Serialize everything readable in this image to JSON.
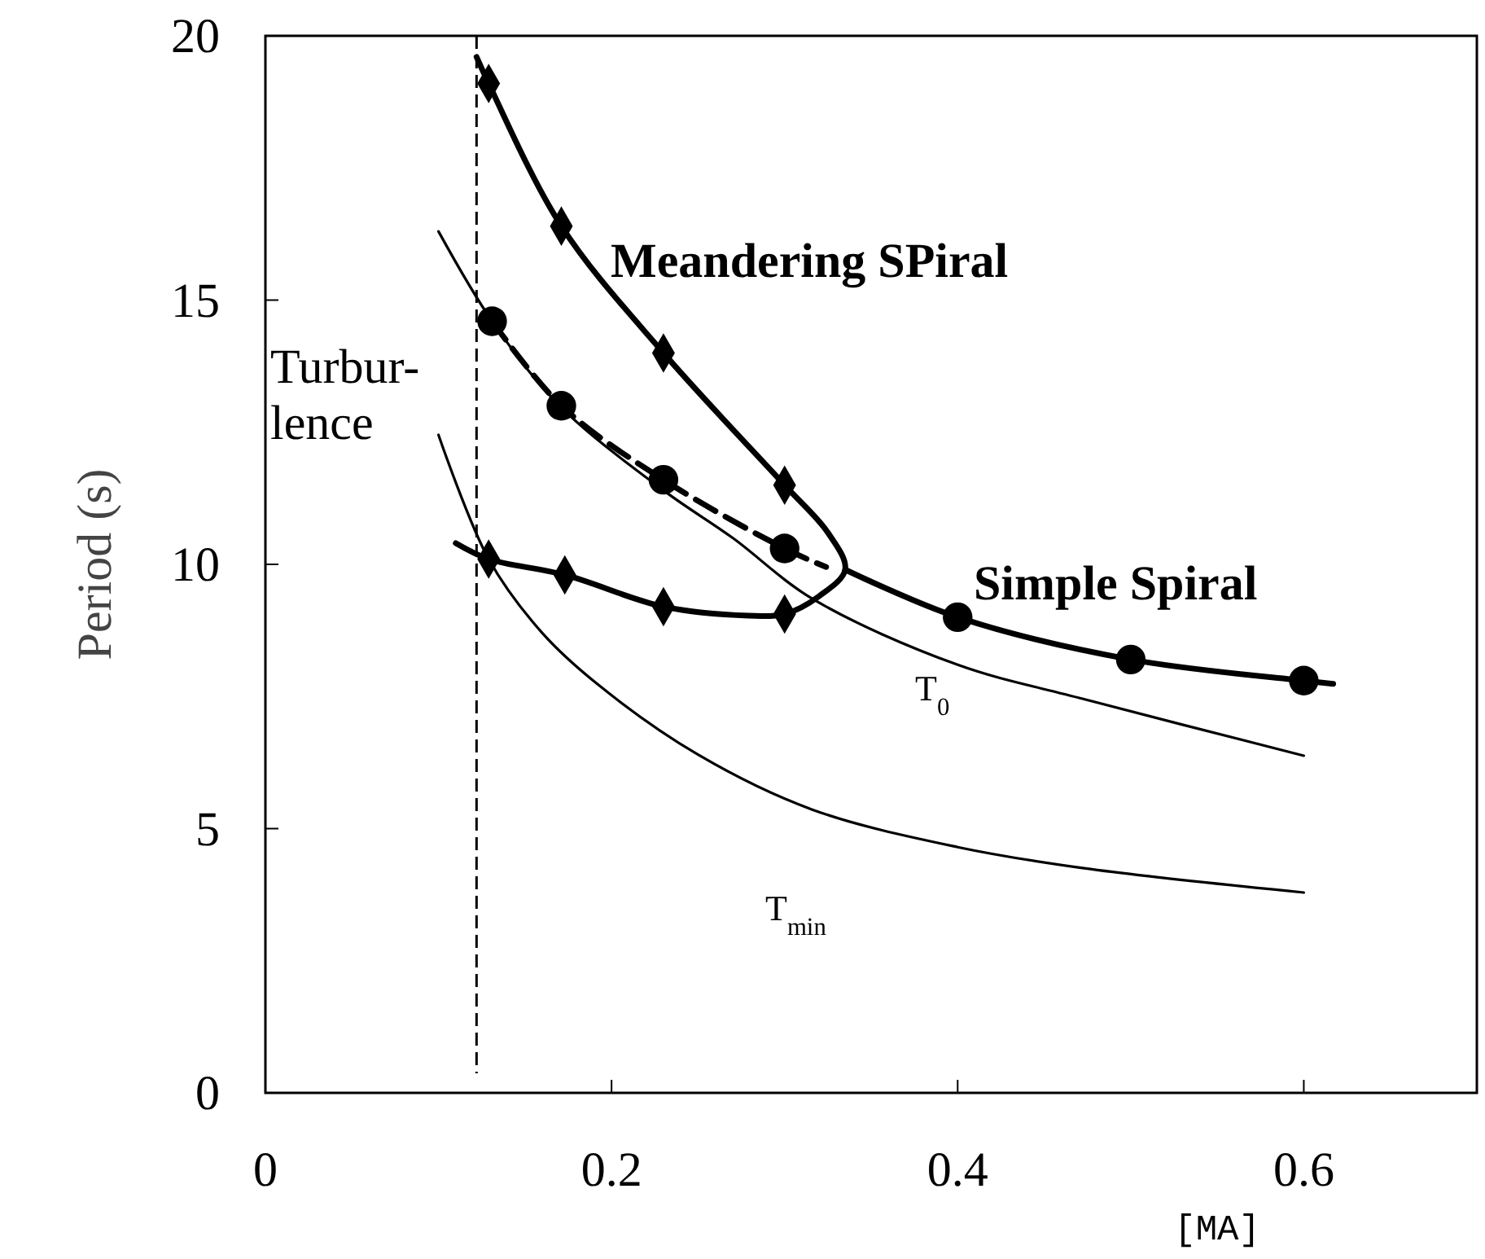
{
  "chart_data": {
    "type": "line",
    "xlabel": "[MA]",
    "ylabel": "Period (s)",
    "xlim": [
      0,
      0.7
    ],
    "ylim": [
      0,
      20
    ],
    "xticks": [
      0,
      0.2,
      0.4,
      0.6
    ],
    "yticks": [
      0,
      5,
      10,
      15,
      20
    ],
    "grid": false,
    "marker": "none",
    "line_style": "solid",
    "series": [
      {
        "name": "Meandering SPiral",
        "color": "#000000",
        "line_style": "solid",
        "x": [
          0.122,
          0.129,
          0.171,
          0.23,
          0.3,
          0.325,
          0.335,
          0.32,
          0.3,
          0.279,
          0.23,
          0.173,
          0.129,
          0.11
        ],
        "values": [
          19.6,
          19.1,
          16.4,
          14.0,
          11.5,
          10.6,
          9.9,
          9.4,
          9.06,
          9.03,
          9.2,
          9.8,
          10.1,
          10.4
        ]
      },
      {
        "type": "scatter",
        "marker": "diamond",
        "color": "#000000",
        "x": [
          0.129,
          0.171,
          0.23,
          0.3,
          0.3,
          0.23,
          0.173,
          0.129
        ],
        "values": [
          19.1,
          16.4,
          14.0,
          11.5,
          9.06,
          9.2,
          9.8,
          10.1
        ]
      },
      {
        "name": "Simple Spiral",
        "color": "#000000",
        "line_style": "solid",
        "x": [
          0.335,
          0.4,
          0.5,
          0.6,
          0.617
        ],
        "values": [
          9.9,
          9.0,
          8.2,
          7.8,
          7.74
        ]
      },
      {
        "color": "#000000",
        "line_style": "dashed",
        "x": [
          0.131,
          0.171,
          0.23,
          0.3,
          0.324
        ],
        "values": [
          14.6,
          13.0,
          11.6,
          10.3,
          9.95
        ]
      },
      {
        "type": "scatter",
        "marker": "circle",
        "color": "#000000",
        "x": [
          0.131,
          0.171,
          0.23,
          0.3,
          0.4,
          0.5,
          0.6
        ],
        "values": [
          14.6,
          13.0,
          11.6,
          10.3,
          9.0,
          8.2,
          7.8
        ]
      },
      {
        "name": "T$_{0}$",
        "color": "#000000",
        "x": [
          0.1,
          0.131,
          0.17,
          0.23,
          0.27,
          0.316,
          0.4,
          0.473,
          0.6
        ],
        "values": [
          16.3,
          14.6,
          13.0,
          11.4,
          10.5,
          9.35,
          8.1,
          7.45,
          6.38
        ]
      },
      {
        "name": "T$_{min}$",
        "color": "#000000",
        "x": [
          0.1,
          0.129,
          0.16,
          0.192,
          0.25,
          0.316,
          0.4,
          0.473,
          0.6
        ],
        "values": [
          12.45,
          10.1,
          8.7,
          7.73,
          6.4,
          5.36,
          4.65,
          4.25,
          3.79
        ]
      }
    ],
    "ref_lines": [
      {
        "axis": "x",
        "value": 0.122,
        "line_style": "dashed",
        "color": "#000000"
      }
    ],
    "annotations": [
      "Turbur-\nlence"
    ]
  }
}
